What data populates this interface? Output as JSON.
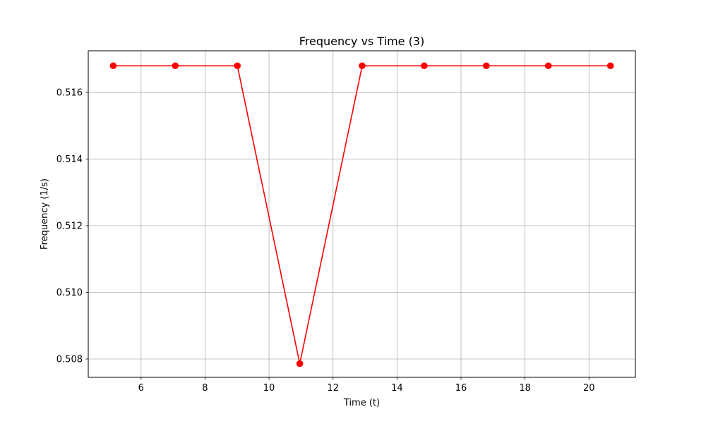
{
  "chart_data": {
    "type": "line",
    "title": "Frequency vs Time (3)",
    "xlabel": "Time (t)",
    "ylabel": "Frequency (1/s)",
    "xlim": [
      4.35,
      21.45
    ],
    "ylim": [
      0.50745,
      0.51725
    ],
    "xticks": [
      6,
      8,
      10,
      12,
      14,
      16,
      18,
      20
    ],
    "xtick_labels": [
      "6",
      "8",
      "10",
      "12",
      "14",
      "16",
      "18",
      "20"
    ],
    "yticks": [
      0.508,
      0.51,
      0.512,
      0.514,
      0.516
    ],
    "ytick_labels": [
      "0.508",
      "0.510",
      "0.512",
      "0.514",
      "0.516"
    ],
    "grid": true,
    "legend": null,
    "series": [
      {
        "color": "#ff0000",
        "marker": "circle",
        "x": [
          5.13,
          7.07,
          9.01,
          10.96,
          12.91,
          14.85,
          16.79,
          18.73,
          20.67
        ],
        "y": [
          0.5168,
          0.5168,
          0.5168,
          0.50786,
          0.5168,
          0.5168,
          0.5168,
          0.5168,
          0.5168
        ]
      }
    ]
  }
}
